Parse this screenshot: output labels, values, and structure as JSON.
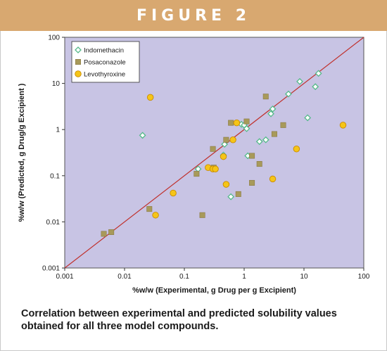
{
  "figure_label": "FIGURE 2",
  "caption": "Correlation between experimental and predicted solubility values obtained for all three model compounds.",
  "colors": {
    "banner": "#d8a870",
    "plot_background": "#c8c4e4",
    "diagonal_line": "#c0302c",
    "indomethacin": "#55b98a",
    "posaconazole": "#a89a5a",
    "levothyroxine": "#f5c518"
  },
  "chart_data": {
    "type": "scatter",
    "xlabel": "%w/w (Experimental,  g Drug per g Excipient)",
    "ylabel": "%w/w (Predicted, g Drug/g Excipient )",
    "xscale": "log",
    "yscale": "log",
    "xlim": [
      0.001,
      100
    ],
    "ylim": [
      0.001,
      100
    ],
    "x_ticks": [
      "0.001",
      "0.01",
      "0.1",
      "1",
      "10",
      "100"
    ],
    "y_ticks": [
      "0.001",
      "0.01",
      "0.1",
      "1",
      "10",
      "100"
    ],
    "grid": false,
    "legend_position": "top-left",
    "reference_line": "y = x",
    "series": [
      {
        "name": "Indomethacin",
        "marker": "diamond",
        "points": [
          [
            0.02,
            0.75
          ],
          [
            0.17,
            0.14
          ],
          [
            0.45,
            0.28
          ],
          [
            0.47,
            0.48
          ],
          [
            0.6,
            0.035
          ],
          [
            0.9,
            1.3
          ],
          [
            1.0,
            1.25
          ],
          [
            1.1,
            1.05
          ],
          [
            1.15,
            0.27
          ],
          [
            1.8,
            0.55
          ],
          [
            2.3,
            0.6
          ],
          [
            2.8,
            2.2
          ],
          [
            3.0,
            2.8
          ],
          [
            5.5,
            5.9
          ],
          [
            8.5,
            11.0
          ],
          [
            11.5,
            1.8
          ],
          [
            15.5,
            8.5
          ],
          [
            17.5,
            16.5
          ]
        ]
      },
      {
        "name": "Posaconazole",
        "marker": "square",
        "points": [
          [
            0.0045,
            0.0055
          ],
          [
            0.006,
            0.006
          ],
          [
            0.026,
            0.019
          ],
          [
            0.16,
            0.11
          ],
          [
            0.2,
            0.014
          ],
          [
            0.3,
            0.38
          ],
          [
            0.31,
            0.15
          ],
          [
            0.5,
            0.6
          ],
          [
            0.6,
            1.4
          ],
          [
            0.8,
            0.04
          ],
          [
            1.1,
            1.5
          ],
          [
            1.35,
            0.27
          ],
          [
            1.35,
            0.07
          ],
          [
            1.8,
            0.18
          ],
          [
            2.3,
            5.2
          ],
          [
            3.2,
            0.8
          ],
          [
            4.5,
            1.25
          ]
        ]
      },
      {
        "name": "Levothyroxine",
        "marker": "circle",
        "points": [
          [
            0.027,
            5.0
          ],
          [
            0.033,
            0.014
          ],
          [
            0.065,
            0.042
          ],
          [
            0.25,
            0.15
          ],
          [
            0.3,
            0.14
          ],
          [
            0.33,
            0.14
          ],
          [
            0.45,
            0.26
          ],
          [
            0.5,
            0.065
          ],
          [
            0.65,
            0.6
          ],
          [
            0.75,
            1.4
          ],
          [
            3.0,
            0.085
          ],
          [
            7.5,
            0.38
          ],
          [
            45.0,
            1.25
          ]
        ]
      }
    ]
  }
}
